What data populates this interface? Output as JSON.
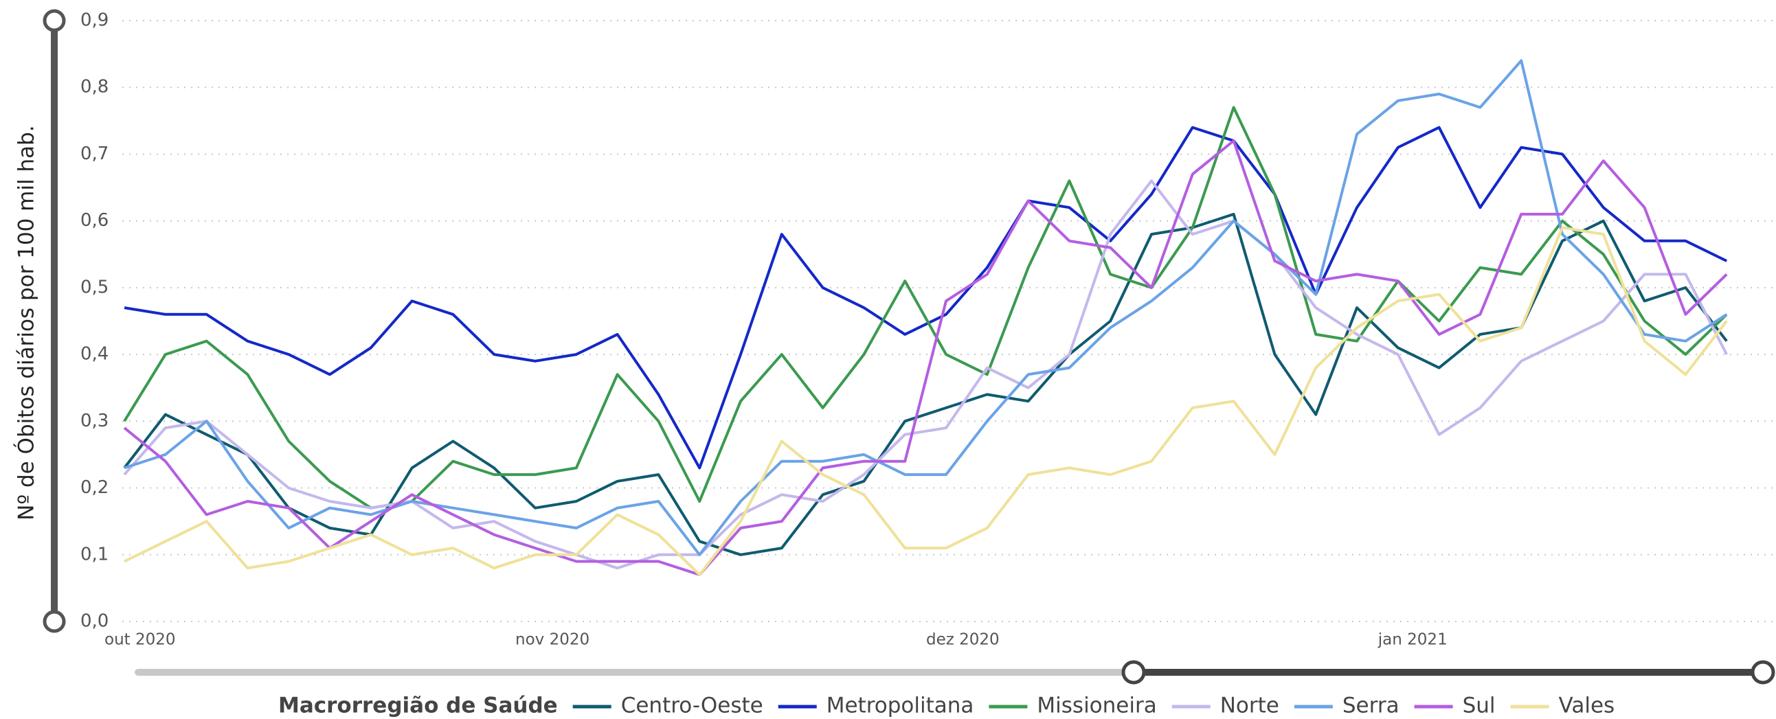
{
  "chart_data": {
    "type": "line",
    "y_axis_label": "Nº de Óbitos diários por 100 mil hab.",
    "legend_title": "Macrorregião de Saúde",
    "categories": [
      "out 2020",
      null,
      null,
      null,
      null,
      null,
      null,
      null,
      null,
      null,
      "nov 2020",
      null,
      null,
      null,
      null,
      null,
      null,
      null,
      null,
      null,
      "dez 2020",
      null,
      null,
      null,
      null,
      null,
      null,
      null,
      null,
      null,
      null,
      "jan 2021",
      null,
      null,
      null,
      null,
      null,
      null,
      null,
      null
    ],
    "ylim": [
      0,
      0.9
    ],
    "yticks": [
      {
        "value": 0,
        "label": "0,0"
      },
      {
        "value": 0.1,
        "label": "0,1"
      },
      {
        "value": 0.2,
        "label": "0,2"
      },
      {
        "value": 0.3,
        "label": "0,3"
      },
      {
        "value": 0.4,
        "label": "0,4"
      },
      {
        "value": 0.5,
        "label": "0,5"
      },
      {
        "value": 0.6,
        "label": "0,6"
      },
      {
        "value": 0.7,
        "label": "0,7"
      },
      {
        "value": 0.8,
        "label": "0,8"
      },
      {
        "value": 0.9,
        "label": "0,9"
      }
    ],
    "grid": true,
    "series": [
      {
        "name": "Centro-Oeste",
        "color": "#0f5b70",
        "values": [
          0.23,
          0.31,
          0.28,
          0.25,
          0.17,
          0.14,
          0.13,
          0.23,
          0.27,
          0.23,
          0.17,
          0.18,
          0.21,
          0.22,
          0.12,
          0.1,
          0.11,
          0.19,
          0.21,
          0.3,
          0.32,
          0.34,
          0.33,
          0.4,
          0.45,
          0.58,
          0.59,
          0.61,
          0.4,
          0.31,
          0.47,
          0.41,
          0.38,
          0.43,
          0.44,
          0.57,
          0.6,
          0.48,
          0.5,
          0.42
        ]
      },
      {
        "name": "Metropolitana",
        "color": "#1428c8",
        "values": [
          0.47,
          0.46,
          0.46,
          0.42,
          0.4,
          0.37,
          0.41,
          0.48,
          0.46,
          0.4,
          0.39,
          0.4,
          0.43,
          0.34,
          0.23,
          0.4,
          0.58,
          0.5,
          0.47,
          0.43,
          0.46,
          0.53,
          0.63,
          0.62,
          0.57,
          0.64,
          0.74,
          0.72,
          0.64,
          0.49,
          0.62,
          0.71,
          0.74,
          0.62,
          0.71,
          0.7,
          0.62,
          0.57,
          0.57,
          0.54
        ]
      },
      {
        "name": "Missioneira",
        "color": "#3b9a50",
        "values": [
          0.3,
          0.4,
          0.42,
          0.37,
          0.27,
          0.21,
          0.17,
          0.18,
          0.24,
          0.22,
          0.22,
          0.23,
          0.37,
          0.3,
          0.18,
          0.33,
          0.4,
          0.32,
          0.4,
          0.51,
          0.4,
          0.37,
          0.53,
          0.66,
          0.52,
          0.5,
          0.59,
          0.77,
          0.64,
          0.43,
          0.42,
          0.51,
          0.45,
          0.53,
          0.52,
          0.6,
          0.55,
          0.45,
          0.4,
          0.46
        ]
      },
      {
        "name": "Norte",
        "color": "#c4b8ec",
        "values": [
          0.22,
          0.29,
          0.3,
          0.25,
          0.2,
          0.18,
          0.17,
          0.18,
          0.14,
          0.15,
          0.12,
          0.1,
          0.08,
          0.1,
          0.1,
          0.16,
          0.19,
          0.18,
          0.22,
          0.28,
          0.29,
          0.38,
          0.35,
          0.4,
          0.58,
          0.66,
          0.58,
          0.6,
          0.55,
          0.47,
          0.43,
          0.4,
          0.28,
          0.32,
          0.39,
          0.42,
          0.45,
          0.52,
          0.52,
          0.4
        ]
      },
      {
        "name": "Serra",
        "color": "#6aa3e6",
        "values": [
          0.23,
          0.25,
          0.3,
          0.21,
          0.14,
          0.17,
          0.16,
          0.18,
          0.17,
          0.16,
          0.15,
          0.14,
          0.17,
          0.18,
          0.1,
          0.18,
          0.24,
          0.24,
          0.25,
          0.22,
          0.22,
          0.3,
          0.37,
          0.38,
          0.44,
          0.48,
          0.53,
          0.6,
          0.55,
          0.49,
          0.73,
          0.78,
          0.79,
          0.77,
          0.84,
          0.58,
          0.52,
          0.43,
          0.42,
          0.46
        ]
      },
      {
        "name": "Sul",
        "color": "#b45ee0",
        "values": [
          0.29,
          0.24,
          0.16,
          0.18,
          0.17,
          0.11,
          0.15,
          0.19,
          0.16,
          0.13,
          0.11,
          0.09,
          0.09,
          0.09,
          0.07,
          0.14,
          0.15,
          0.23,
          0.24,
          0.24,
          0.48,
          0.52,
          0.63,
          0.57,
          0.56,
          0.5,
          0.67,
          0.72,
          0.54,
          0.51,
          0.52,
          0.51,
          0.43,
          0.46,
          0.61,
          0.61,
          0.69,
          0.62,
          0.46,
          0.52
        ]
      },
      {
        "name": "Vales",
        "color": "#efe199",
        "values": [
          0.09,
          0.12,
          0.15,
          0.08,
          0.09,
          0.11,
          0.13,
          0.1,
          0.11,
          0.08,
          0.1,
          0.1,
          0.16,
          0.13,
          0.07,
          0.15,
          0.27,
          0.22,
          0.19,
          0.11,
          0.11,
          0.14,
          0.22,
          0.23,
          0.22,
          0.24,
          0.32,
          0.33,
          0.25,
          0.38,
          0.44,
          0.48,
          0.49,
          0.42,
          0.44,
          0.59,
          0.58,
          0.42,
          0.37,
          0.45
        ]
      }
    ]
  }
}
